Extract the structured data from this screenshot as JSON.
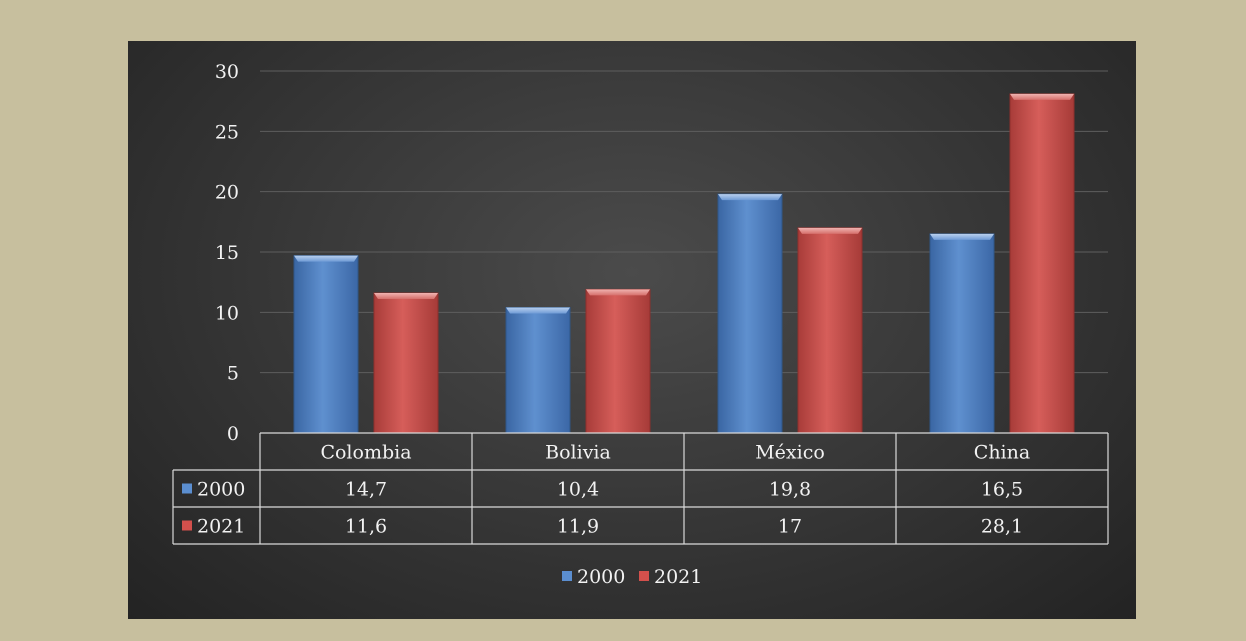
{
  "chart_data": {
    "type": "bar",
    "categories": [
      "Colombia",
      "Bolivia",
      "México",
      "China"
    ],
    "series": [
      {
        "name": "2000",
        "values": [
          14.7,
          10.4,
          19.8,
          16.5
        ],
        "display": [
          "14,7",
          "10,4",
          "19,8",
          "16,5"
        ],
        "color": "#4f81bd"
      },
      {
        "name": "2021",
        "values": [
          11.6,
          11.9,
          17,
          28.1
        ],
        "display": [
          "11,6",
          "11,9",
          "17",
          "28,1"
        ],
        "color": "#c0504d"
      }
    ],
    "ylim": [
      0,
      30
    ],
    "yticks": [
      0,
      5,
      10,
      15,
      20,
      25,
      30
    ],
    "grid": true,
    "data_table": true,
    "legend_position": "bottom",
    "title": "",
    "xlabel": "",
    "ylabel": ""
  },
  "colors": {
    "page_background": "#c7bf9e",
    "chart_background": "#3c3c3c",
    "series_2000": "#4f81bd",
    "series_2021": "#c0504d",
    "text": "#f2f2f2"
  }
}
